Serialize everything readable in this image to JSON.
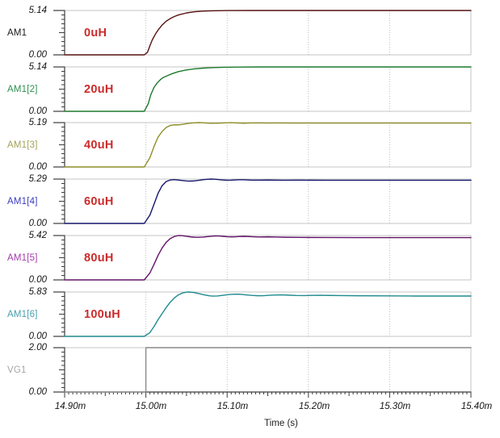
{
  "styles": {
    "annotation_color": "#cc2b2b",
    "frame_color": "#c6c6c6",
    "axis_color": "#3c3c3c",
    "grid_color": "#bdbdbd"
  },
  "chart_data": {
    "type": "line",
    "title": "",
    "xlabel": "Time (s)",
    "x_range_ms": [
      14.9,
      15.4
    ],
    "x_tick_labels": [
      "14.90m",
      "15.00m",
      "15.10m",
      "15.20m",
      "15.30m",
      "15.40m"
    ],
    "x_grid_ms": [
      15.0,
      15.1,
      15.2,
      15.3
    ],
    "grid": "dotted-vertical",
    "legend_position": "left-margin-per-panel",
    "panels": [
      {
        "name": "AM1",
        "annotation": "0uH",
        "y_max_label": "5.14",
        "y_min_label": "0.00",
        "ymax": 5.14,
        "name_color": "#1a1a1a",
        "curve_color": "#571111",
        "points": [
          [
            14.9,
            0
          ],
          [
            14.998,
            0
          ],
          [
            15.002,
            0.3
          ],
          [
            15.005,
            1.05
          ],
          [
            15.008,
            1.75
          ],
          [
            15.012,
            2.45
          ],
          [
            15.016,
            3.0
          ],
          [
            15.02,
            3.45
          ],
          [
            15.025,
            3.9
          ],
          [
            15.03,
            4.2
          ],
          [
            15.035,
            4.44
          ],
          [
            15.04,
            4.62
          ],
          [
            15.05,
            4.86
          ],
          [
            15.06,
            4.99
          ],
          [
            15.07,
            5.06
          ],
          [
            15.08,
            5.1
          ],
          [
            15.1,
            5.13
          ],
          [
            15.13,
            5.14
          ],
          [
            15.4,
            5.14
          ]
        ]
      },
      {
        "name": "AM1[2]",
        "annotation": "20uH",
        "y_max_label": "5.14",
        "y_min_label": "0.00",
        "ymax": 5.14,
        "name_color": "#2e9150",
        "curve_color": "#1d7a2c",
        "points": [
          [
            14.9,
            0
          ],
          [
            14.998,
            0
          ],
          [
            15.003,
            0.9
          ],
          [
            15.006,
            1.9
          ],
          [
            15.01,
            2.78
          ],
          [
            15.014,
            3.3
          ],
          [
            15.018,
            3.68
          ],
          [
            15.022,
            3.95
          ],
          [
            15.027,
            4.15
          ],
          [
            15.032,
            4.35
          ],
          [
            15.04,
            4.6
          ],
          [
            15.05,
            4.8
          ],
          [
            15.06,
            4.92
          ],
          [
            15.07,
            5.0
          ],
          [
            15.08,
            5.05
          ],
          [
            15.09,
            5.09
          ],
          [
            15.11,
            5.12
          ],
          [
            15.14,
            5.14
          ],
          [
            15.4,
            5.14
          ]
        ]
      },
      {
        "name": "AM1[3]",
        "annotation": "40uH",
        "y_max_label": "5.19",
        "y_min_label": "0.00",
        "ymax": 5.19,
        "name_color": "#a2a25a",
        "curve_color": "#8e8e2b",
        "points": [
          [
            14.9,
            0
          ],
          [
            14.998,
            0
          ],
          [
            15.005,
            1.1
          ],
          [
            15.01,
            2.4
          ],
          [
            15.015,
            3.5
          ],
          [
            15.02,
            4.15
          ],
          [
            15.025,
            4.62
          ],
          [
            15.03,
            4.86
          ],
          [
            15.035,
            4.94
          ],
          [
            15.04,
            4.93
          ],
          [
            15.045,
            4.98
          ],
          [
            15.05,
            5.07
          ],
          [
            15.055,
            5.13
          ],
          [
            15.06,
            5.17
          ],
          [
            15.065,
            5.19
          ],
          [
            15.07,
            5.17
          ],
          [
            15.075,
            5.14
          ],
          [
            15.08,
            5.11
          ],
          [
            15.09,
            5.13
          ],
          [
            15.1,
            5.17
          ],
          [
            15.105,
            5.18
          ],
          [
            15.11,
            5.16
          ],
          [
            15.12,
            5.12
          ],
          [
            15.13,
            5.15
          ],
          [
            15.14,
            5.16
          ],
          [
            15.15,
            5.14
          ],
          [
            15.16,
            5.15
          ],
          [
            15.18,
            5.14
          ],
          [
            15.4,
            5.14
          ]
        ]
      },
      {
        "name": "AM1[4]",
        "annotation": "60uH",
        "y_max_label": "5.29",
        "y_min_label": "0.00",
        "ymax": 5.29,
        "name_color": "#3c3cc0",
        "curve_color": "#15156b",
        "points": [
          [
            14.9,
            0
          ],
          [
            14.998,
            0
          ],
          [
            15.005,
            1.0
          ],
          [
            15.01,
            2.3
          ],
          [
            15.015,
            3.6
          ],
          [
            15.02,
            4.5
          ],
          [
            15.025,
            5.0
          ],
          [
            15.03,
            5.18
          ],
          [
            15.034,
            5.22
          ],
          [
            15.04,
            5.18
          ],
          [
            15.045,
            5.12
          ],
          [
            15.05,
            5.07
          ],
          [
            15.055,
            5.05
          ],
          [
            15.06,
            5.08
          ],
          [
            15.065,
            5.14
          ],
          [
            15.07,
            5.21
          ],
          [
            15.075,
            5.26
          ],
          [
            15.08,
            5.29
          ],
          [
            15.085,
            5.27
          ],
          [
            15.09,
            5.22
          ],
          [
            15.095,
            5.18
          ],
          [
            15.1,
            5.15
          ],
          [
            15.105,
            5.16
          ],
          [
            15.11,
            5.19
          ],
          [
            15.115,
            5.21
          ],
          [
            15.12,
            5.21
          ],
          [
            15.13,
            5.16
          ],
          [
            15.14,
            5.16
          ],
          [
            15.15,
            5.18
          ],
          [
            15.16,
            5.16
          ],
          [
            15.17,
            5.15
          ],
          [
            15.19,
            5.16
          ],
          [
            15.22,
            5.15
          ],
          [
            15.4,
            5.15
          ]
        ]
      },
      {
        "name": "AM1[5]",
        "annotation": "80uH",
        "y_max_label": "5.42",
        "y_min_label": "0.00",
        "ymax": 5.42,
        "name_color": "#a23ca8",
        "curve_color": "#621368",
        "points": [
          [
            14.9,
            0
          ],
          [
            14.998,
            0
          ],
          [
            15.005,
            0.85
          ],
          [
            15.01,
            1.9
          ],
          [
            15.015,
            3.0
          ],
          [
            15.02,
            3.9
          ],
          [
            15.025,
            4.6
          ],
          [
            15.03,
            5.05
          ],
          [
            15.035,
            5.3
          ],
          [
            15.04,
            5.42
          ],
          [
            15.045,
            5.4
          ],
          [
            15.05,
            5.33
          ],
          [
            15.055,
            5.26
          ],
          [
            15.06,
            5.21
          ],
          [
            15.065,
            5.2
          ],
          [
            15.07,
            5.23
          ],
          [
            15.075,
            5.28
          ],
          [
            15.08,
            5.33
          ],
          [
            15.085,
            5.37
          ],
          [
            15.09,
            5.36
          ],
          [
            15.095,
            5.32
          ],
          [
            15.1,
            5.28
          ],
          [
            15.105,
            5.26
          ],
          [
            15.11,
            5.27
          ],
          [
            15.115,
            5.3
          ],
          [
            15.12,
            5.32
          ],
          [
            15.125,
            5.31
          ],
          [
            15.13,
            5.28
          ],
          [
            15.14,
            5.24
          ],
          [
            15.15,
            5.26
          ],
          [
            15.16,
            5.24
          ],
          [
            15.17,
            5.21
          ],
          [
            15.19,
            5.19
          ],
          [
            15.22,
            5.18
          ],
          [
            15.26,
            5.17
          ],
          [
            15.4,
            5.17
          ]
        ]
      },
      {
        "name": "AM1[6]",
        "annotation": "100uH",
        "y_max_label": "5.83",
        "y_min_label": "0.00",
        "ymax": 5.83,
        "name_color": "#45a0ad",
        "curve_color": "#1f8a8f",
        "points": [
          [
            14.9,
            0
          ],
          [
            14.998,
            0
          ],
          [
            15.005,
            0.5
          ],
          [
            15.01,
            1.3
          ],
          [
            15.015,
            2.2
          ],
          [
            15.02,
            3.0
          ],
          [
            15.025,
            3.8
          ],
          [
            15.03,
            4.5
          ],
          [
            15.035,
            5.05
          ],
          [
            15.04,
            5.45
          ],
          [
            15.045,
            5.7
          ],
          [
            15.05,
            5.81
          ],
          [
            15.053,
            5.83
          ],
          [
            15.058,
            5.78
          ],
          [
            15.065,
            5.62
          ],
          [
            15.072,
            5.45
          ],
          [
            15.078,
            5.33
          ],
          [
            15.082,
            5.29
          ],
          [
            15.088,
            5.31
          ],
          [
            15.095,
            5.4
          ],
          [
            15.103,
            5.5
          ],
          [
            15.11,
            5.55
          ],
          [
            15.115,
            5.54
          ],
          [
            15.122,
            5.47
          ],
          [
            15.13,
            5.39
          ],
          [
            15.138,
            5.34
          ],
          [
            15.145,
            5.35
          ],
          [
            15.152,
            5.4
          ],
          [
            15.16,
            5.44
          ],
          [
            15.168,
            5.45
          ],
          [
            15.175,
            5.42
          ],
          [
            15.185,
            5.37
          ],
          [
            15.195,
            5.36
          ],
          [
            15.205,
            5.39
          ],
          [
            15.215,
            5.4
          ],
          [
            15.225,
            5.38
          ],
          [
            15.24,
            5.36
          ],
          [
            15.26,
            5.34
          ],
          [
            15.3,
            5.32
          ],
          [
            15.33,
            5.3
          ],
          [
            15.4,
            5.3
          ]
        ]
      },
      {
        "name": "VG1",
        "annotation": "",
        "y_max_label": "2.00",
        "y_min_label": "0.00",
        "ymax": 2.0,
        "name_color": "#a6a6a6",
        "curve_color": "#8a8a8a",
        "points": [
          [
            14.9,
            0
          ],
          [
            15.0,
            0
          ],
          [
            15.0,
            2.0
          ],
          [
            15.4,
            2.0
          ]
        ]
      }
    ]
  }
}
